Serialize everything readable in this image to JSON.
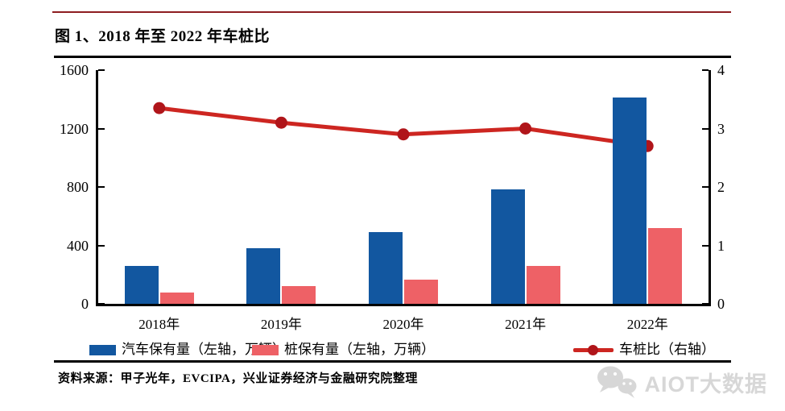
{
  "page": {
    "title": "图 1、2018 年至 2022 年车桩比",
    "source": "资料来源：甲子光年，EVCIPA，兴业证券经济与金融研究院整理",
    "watermark": "AIOT大数据"
  },
  "colors": {
    "top_rule": "#8e1d21",
    "black_rule": "#000000",
    "car_bar": "#1257a0",
    "pile_bar": "#ee6166",
    "ratio_line": "#cd2621",
    "ratio_marker": "#b0151a",
    "watermark": "#d7d7d7"
  },
  "chart_data": {
    "type": "bar",
    "subtype": "grouped bars + line on secondary axis",
    "title": "图 1、2018 年至 2022 年车桩比",
    "categories": [
      "2018年",
      "2019年",
      "2020年",
      "2021年",
      "2022年"
    ],
    "series": [
      {
        "key": "car",
        "name": "汽车保有量（左轴，万辆）",
        "type": "bar",
        "axis": "left",
        "color": "#1257a0",
        "values": [
          261,
          381,
          492,
          784,
          1410
        ]
      },
      {
        "key": "pile",
        "name": "桩保有量（左轴，万辆）",
        "type": "bar",
        "axis": "left",
        "color": "#ee6166",
        "values": [
          78,
          122,
          168,
          262,
          520
        ]
      },
      {
        "key": "ratio",
        "name": "车桩比（右轴）",
        "type": "line",
        "axis": "right",
        "color": "#cd2621",
        "marker_color": "#b0151a",
        "values": [
          3.35,
          3.1,
          2.9,
          3.0,
          2.7
        ]
      }
    ],
    "left_axis": {
      "ticks": [
        0,
        400,
        800,
        1200,
        1600
      ],
      "max": 1600
    },
    "right_axis": {
      "ticks": [
        0,
        1,
        2,
        3,
        4
      ],
      "max": 4
    },
    "grid": false,
    "legend_position": "bottom"
  }
}
